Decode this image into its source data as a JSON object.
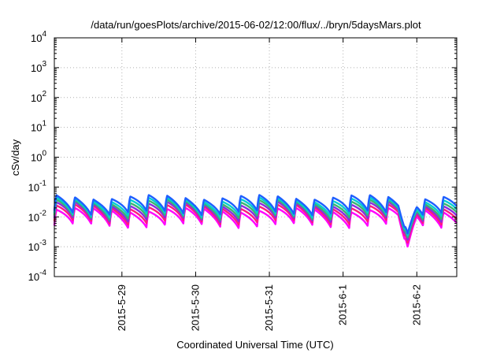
{
  "chart_data": {
    "type": "line",
    "title": "/data/run/goesPlots/archive/2015-06-02/12:00/flux/../bryn/5daysMars.plot",
    "xlabel": "Coordinated Universal Time (UTC)",
    "ylabel": "cSv/day",
    "yscale": "log",
    "ylim": [
      0.0001,
      10000
    ],
    "xlim": [
      "2015-05-28 02:00",
      "2015-06-02 13:00"
    ],
    "grid": true,
    "legend": "none",
    "x_ticks": [
      "2015-5-29",
      "2015-5-30",
      "2015-5-31",
      "2015-6-1",
      "2015-6-2"
    ],
    "y_ticks": [
      {
        "base": "10",
        "exp": "4",
        "value": 10000
      },
      {
        "base": "10",
        "exp": "3",
        "value": 1000
      },
      {
        "base": "10",
        "exp": "2",
        "value": 100
      },
      {
        "base": "10",
        "exp": "1",
        "value": 10
      },
      {
        "base": "10",
        "exp": "0",
        "value": 1
      },
      {
        "base": "10",
        "exp": "-1",
        "value": 0.1
      },
      {
        "base": "10",
        "exp": "-2",
        "value": 0.01
      },
      {
        "base": "10",
        "exp": "-3",
        "value": 0.001
      },
      {
        "base": "10",
        "exp": "-4",
        "value": 0.0001
      }
    ],
    "pattern": {
      "cycles_per_day": 4,
      "sawtooth_peak_factor": 2.0,
      "sawtooth_trough_factor": 0.6,
      "dip_time": "2015-06-01 21:00",
      "dip_min": 0.001
    },
    "series": [
      {
        "color": "#ff00ff",
        "base": 0.0085
      },
      {
        "color": "#ff1d7a",
        "base": 0.011
      },
      {
        "color": "#8a2be2",
        "base": 0.0135
      },
      {
        "color": "#3cb371",
        "base": 0.016
      },
      {
        "color": "#00ced1",
        "base": 0.019
      },
      {
        "color": "#1e5fff",
        "base": 0.023
      }
    ]
  }
}
